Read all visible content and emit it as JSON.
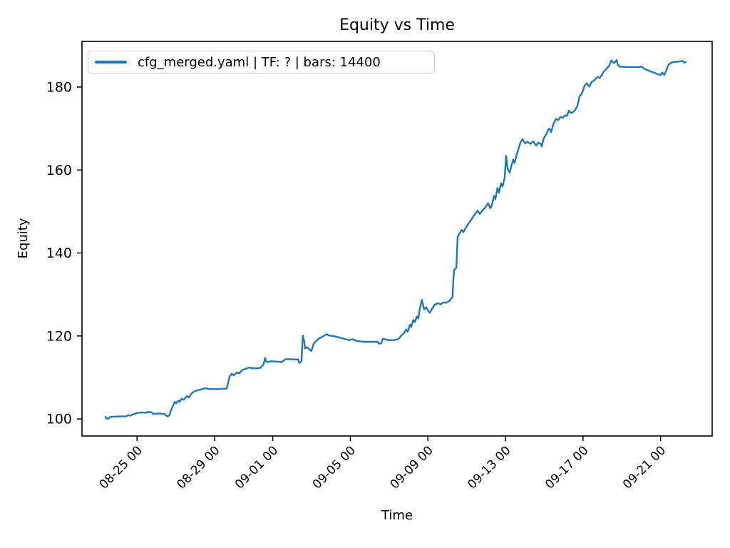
{
  "figure": {
    "background": "#ffffff",
    "spine_color": "#000000",
    "tick_color": "#000000",
    "text_color": "#000000"
  },
  "chart_data": {
    "type": "line",
    "title": "Equity vs Time",
    "xlabel": "Time",
    "ylabel": "Equity",
    "grid": false,
    "legend": {
      "position": "upper left",
      "entries": [
        {
          "label": "cfg_merged.yaml | TF: ? | bars: 14400",
          "color": "#1f77b4"
        }
      ]
    },
    "line_color": "#1f77b4",
    "line_width": 2.4,
    "x_unit": "days since first bar (~08-23 08:00)",
    "xlim_days": [
      -1.17,
      31.33
    ],
    "ylim": [
      95.9,
      191.0
    ],
    "x_tick_rotation": 45,
    "x_ticks": [
      {
        "day": 1.67,
        "label": "08-25 00"
      },
      {
        "day": 5.67,
        "label": "08-29 00"
      },
      {
        "day": 8.67,
        "label": "09-01 00"
      },
      {
        "day": 12.67,
        "label": "09-05 00"
      },
      {
        "day": 16.67,
        "label": "09-09 00"
      },
      {
        "day": 20.67,
        "label": "09-13 00"
      },
      {
        "day": 24.67,
        "label": "09-17 00"
      },
      {
        "day": 28.67,
        "label": "09-21 00"
      }
    ],
    "y_ticks": [
      100,
      120,
      140,
      160,
      180
    ],
    "series": [
      {
        "name": "cfg_merged.yaml | TF: ? | bars: 14400",
        "color": "#1f77b4",
        "points": [
          [
            0.04,
            100.5
          ],
          [
            0.1,
            100.05
          ],
          [
            0.19,
            100.1
          ],
          [
            0.3,
            100.5
          ],
          [
            0.67,
            100.6
          ],
          [
            1.11,
            100.65
          ],
          [
            1.22,
            100.9
          ],
          [
            1.33,
            100.8
          ],
          [
            1.47,
            101.1
          ],
          [
            1.66,
            101.4
          ],
          [
            1.84,
            101.55
          ],
          [
            2.14,
            101.5
          ],
          [
            2.21,
            101.7
          ],
          [
            2.43,
            101.6
          ],
          [
            2.5,
            101.2
          ],
          [
            2.76,
            101.3
          ],
          [
            3.06,
            101.25
          ],
          [
            3.24,
            100.6
          ],
          [
            3.35,
            100.9
          ],
          [
            3.42,
            102.1
          ],
          [
            3.53,
            103.2
          ],
          [
            3.61,
            104.1
          ],
          [
            3.68,
            103.8
          ],
          [
            3.79,
            104.4
          ],
          [
            3.86,
            104.1
          ],
          [
            3.97,
            104.9
          ],
          [
            4.08,
            104.6
          ],
          [
            4.23,
            105.5
          ],
          [
            4.34,
            105.2
          ],
          [
            4.53,
            106.4
          ],
          [
            4.71,
            106.8
          ],
          [
            4.89,
            107.0
          ],
          [
            5.15,
            107.4
          ],
          [
            5.44,
            107.2
          ],
          [
            5.81,
            107.2
          ],
          [
            6.07,
            107.3
          ],
          [
            6.29,
            107.3
          ],
          [
            6.36,
            108.5
          ],
          [
            6.44,
            110.2
          ],
          [
            6.55,
            110.9
          ],
          [
            6.66,
            110.5
          ],
          [
            6.8,
            111.2
          ],
          [
            6.95,
            111.0
          ],
          [
            7.1,
            111.8
          ],
          [
            7.28,
            112.1
          ],
          [
            7.47,
            112.4
          ],
          [
            7.65,
            112.2
          ],
          [
            7.83,
            112.2
          ],
          [
            8.02,
            112.3
          ],
          [
            8.2,
            113.2
          ],
          [
            8.27,
            114.7
          ],
          [
            8.35,
            113.7
          ],
          [
            8.57,
            113.9
          ],
          [
            8.94,
            113.8
          ],
          [
            9.12,
            113.7
          ],
          [
            9.31,
            114.4
          ],
          [
            9.67,
            114.4
          ],
          [
            9.86,
            114.3
          ],
          [
            9.97,
            114.4
          ],
          [
            10.04,
            113.5
          ],
          [
            10.15,
            113.9
          ],
          [
            10.22,
            120.1
          ],
          [
            10.3,
            118.5
          ],
          [
            10.33,
            117.0
          ],
          [
            10.44,
            117.3
          ],
          [
            10.55,
            116.8
          ],
          [
            10.66,
            116.4
          ],
          [
            10.78,
            118.1
          ],
          [
            10.89,
            118.7
          ],
          [
            11.03,
            119.3
          ],
          [
            11.22,
            119.8
          ],
          [
            11.44,
            120.4
          ],
          [
            11.58,
            120.1
          ],
          [
            11.8,
            120.0
          ],
          [
            12.13,
            119.6
          ],
          [
            12.36,
            119.3
          ],
          [
            12.61,
            119.0
          ],
          [
            12.8,
            119.2
          ],
          [
            12.98,
            118.8
          ],
          [
            13.35,
            118.6
          ],
          [
            13.72,
            118.6
          ],
          [
            14.08,
            118.6
          ],
          [
            14.16,
            118.1
          ],
          [
            14.27,
            118.3
          ],
          [
            14.34,
            119.3
          ],
          [
            14.64,
            119.0
          ],
          [
            14.93,
            119.0
          ],
          [
            15.11,
            119.2
          ],
          [
            15.19,
            119.5
          ],
          [
            15.3,
            120.1
          ],
          [
            15.44,
            120.7
          ],
          [
            15.55,
            121.6
          ],
          [
            15.63,
            121.0
          ],
          [
            15.74,
            122.7
          ],
          [
            15.81,
            122.2
          ],
          [
            15.92,
            123.9
          ],
          [
            16.0,
            123.4
          ],
          [
            16.11,
            124.7
          ],
          [
            16.18,
            124.2
          ],
          [
            16.25,
            126.5
          ],
          [
            16.36,
            128.7
          ],
          [
            16.47,
            126.4
          ],
          [
            16.58,
            126.9
          ],
          [
            16.69,
            126.0
          ],
          [
            16.77,
            125.6
          ],
          [
            16.88,
            126.5
          ],
          [
            17.02,
            127.6
          ],
          [
            17.21,
            127.9
          ],
          [
            17.32,
            127.6
          ],
          [
            17.47,
            128.1
          ],
          [
            17.61,
            128.0
          ],
          [
            17.76,
            128.4
          ],
          [
            17.87,
            129.0
          ],
          [
            17.94,
            129.3
          ],
          [
            17.98,
            133.5
          ],
          [
            18.02,
            135.9
          ],
          [
            18.09,
            136.2
          ],
          [
            18.13,
            136.4
          ],
          [
            18.16,
            139.0
          ],
          [
            18.2,
            143.9
          ],
          [
            18.31,
            144.8
          ],
          [
            18.42,
            145.6
          ],
          [
            18.5,
            145.0
          ],
          [
            18.61,
            146.0
          ],
          [
            18.68,
            146.5
          ],
          [
            18.79,
            147.3
          ],
          [
            18.86,
            147.7
          ],
          [
            19.01,
            148.8
          ],
          [
            19.12,
            149.5
          ],
          [
            19.23,
            150.2
          ],
          [
            19.34,
            149.4
          ],
          [
            19.49,
            150.3
          ],
          [
            19.6,
            150.8
          ],
          [
            19.78,
            152.0
          ],
          [
            19.89,
            150.8
          ],
          [
            19.97,
            151.5
          ],
          [
            20.08,
            153.8
          ],
          [
            20.15,
            153.0
          ],
          [
            20.26,
            155.7
          ],
          [
            20.33,
            154.5
          ],
          [
            20.44,
            156.8
          ],
          [
            20.52,
            156.0
          ],
          [
            20.63,
            158.3
          ],
          [
            20.7,
            163.4
          ],
          [
            20.78,
            160.3
          ],
          [
            20.89,
            159.4
          ],
          [
            21.0,
            161.4
          ],
          [
            21.07,
            162.5
          ],
          [
            21.14,
            161.7
          ],
          [
            21.25,
            163.7
          ],
          [
            21.33,
            164.9
          ],
          [
            21.44,
            166.6
          ],
          [
            21.55,
            167.4
          ],
          [
            21.69,
            166.4
          ],
          [
            21.8,
            166.8
          ],
          [
            21.95,
            166.3
          ],
          [
            22.1,
            166.9
          ],
          [
            22.25,
            165.9
          ],
          [
            22.36,
            166.6
          ],
          [
            22.47,
            166.4
          ],
          [
            22.54,
            165.7
          ],
          [
            22.65,
            167.7
          ],
          [
            22.8,
            168.8
          ],
          [
            22.87,
            169.7
          ],
          [
            22.94,
            170.0
          ],
          [
            23.02,
            169.1
          ],
          [
            23.13,
            170.9
          ],
          [
            23.2,
            171.7
          ],
          [
            23.28,
            172.3
          ],
          [
            23.39,
            172.0
          ],
          [
            23.5,
            172.8
          ],
          [
            23.64,
            172.6
          ],
          [
            23.75,
            173.2
          ],
          [
            23.83,
            173.0
          ],
          [
            23.94,
            174.3
          ],
          [
            24.05,
            173.7
          ],
          [
            24.16,
            174.0
          ],
          [
            24.27,
            174.5
          ],
          [
            24.38,
            175.5
          ],
          [
            24.49,
            177.8
          ],
          [
            24.6,
            178.3
          ],
          [
            24.67,
            179.2
          ],
          [
            24.75,
            180.3
          ],
          [
            24.86,
            180.9
          ],
          [
            25.0,
            180.1
          ],
          [
            25.11,
            181.2
          ],
          [
            25.22,
            181.5
          ],
          [
            25.41,
            182.4
          ],
          [
            25.52,
            182.2
          ],
          [
            25.66,
            183.0
          ],
          [
            25.74,
            183.8
          ],
          [
            25.85,
            184.2
          ],
          [
            25.92,
            184.6
          ],
          [
            26.03,
            185.2
          ],
          [
            26.11,
            186.2
          ],
          [
            26.14,
            186.4
          ],
          [
            26.22,
            185.9
          ],
          [
            26.29,
            185.8
          ],
          [
            26.4,
            186.5
          ],
          [
            26.47,
            185.3
          ],
          [
            26.55,
            184.9
          ],
          [
            26.77,
            184.85
          ],
          [
            27.13,
            184.8
          ],
          [
            27.5,
            184.8
          ],
          [
            27.69,
            184.9
          ],
          [
            27.87,
            184.3
          ],
          [
            27.98,
            184.1
          ],
          [
            28.13,
            183.8
          ],
          [
            28.31,
            183.5
          ],
          [
            28.42,
            183.3
          ],
          [
            28.57,
            183.0
          ],
          [
            28.68,
            182.9
          ],
          [
            28.75,
            183.5
          ],
          [
            28.86,
            182.9
          ],
          [
            28.97,
            184.0
          ],
          [
            29.05,
            185.2
          ],
          [
            29.16,
            185.7
          ],
          [
            29.3,
            186.0
          ],
          [
            29.52,
            186.1
          ],
          [
            29.71,
            186.2
          ],
          [
            29.78,
            186.3
          ],
          [
            29.89,
            185.9
          ],
          [
            29.96,
            186.0
          ]
        ]
      }
    ]
  }
}
